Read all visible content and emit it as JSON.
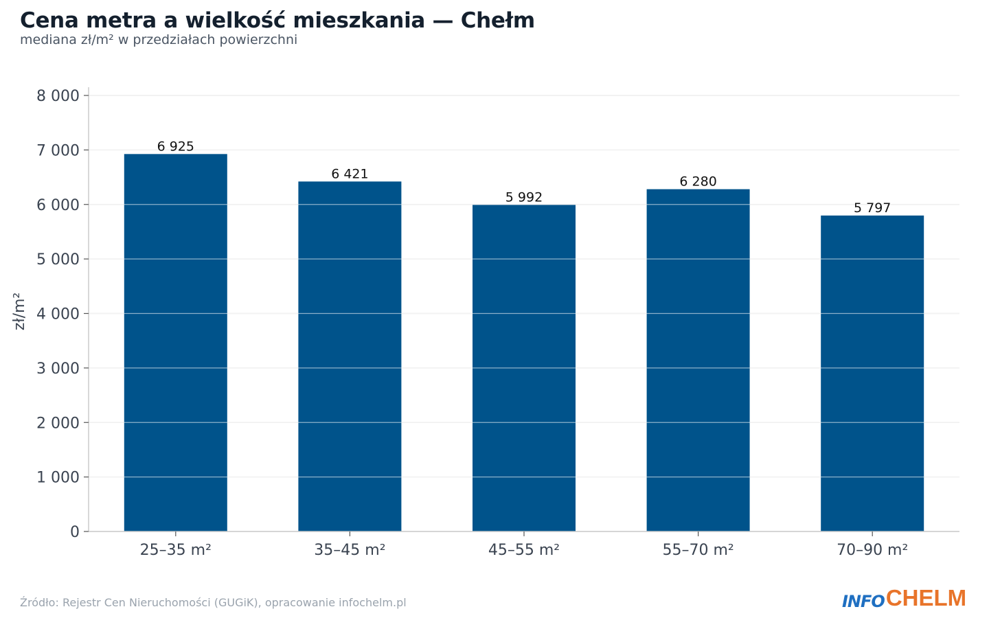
{
  "header": {
    "title": "Cena metra a wielkość mieszkania — Chełm",
    "subtitle": "mediana zł/m² w przedziałach powierzchni"
  },
  "footer": {
    "source": "Źródło: Rejestr Cen Nieruchomości (GUGiK), opracowanie infochelm.pl",
    "logo_info": "INFO",
    "logo_chelm": "CHELM"
  },
  "colors": {
    "bar": "#00538b",
    "grid": "#e3e3e3",
    "axis": "#cccccc",
    "logo_info": "#1f6fc1",
    "logo_chelm": "#e8742a"
  },
  "chart_data": {
    "type": "bar",
    "title": "Cena metra a wielkość mieszkania — Chełm",
    "subtitle": "mediana zł/m² w przedziałach powierzchni",
    "xlabel": "",
    "ylabel": "zł/m²",
    "categories": [
      "25–35 m²",
      "35–45 m²",
      "45–55 m²",
      "55–70 m²",
      "70–90 m²"
    ],
    "values": [
      6925,
      6421,
      5992,
      6280,
      5797
    ],
    "value_labels": [
      "6 925",
      "6 421",
      "5 992",
      "6 280",
      "5 797"
    ],
    "ylim": [
      0,
      8000
    ],
    "yticks": [
      0,
      1000,
      2000,
      3000,
      4000,
      5000,
      6000,
      7000,
      8000
    ],
    "ytick_labels": [
      "0",
      "1 000",
      "2 000",
      "3 000",
      "4 000",
      "5 000",
      "6 000",
      "7 000",
      "8 000"
    ],
    "grid": true,
    "legend": "none"
  }
}
